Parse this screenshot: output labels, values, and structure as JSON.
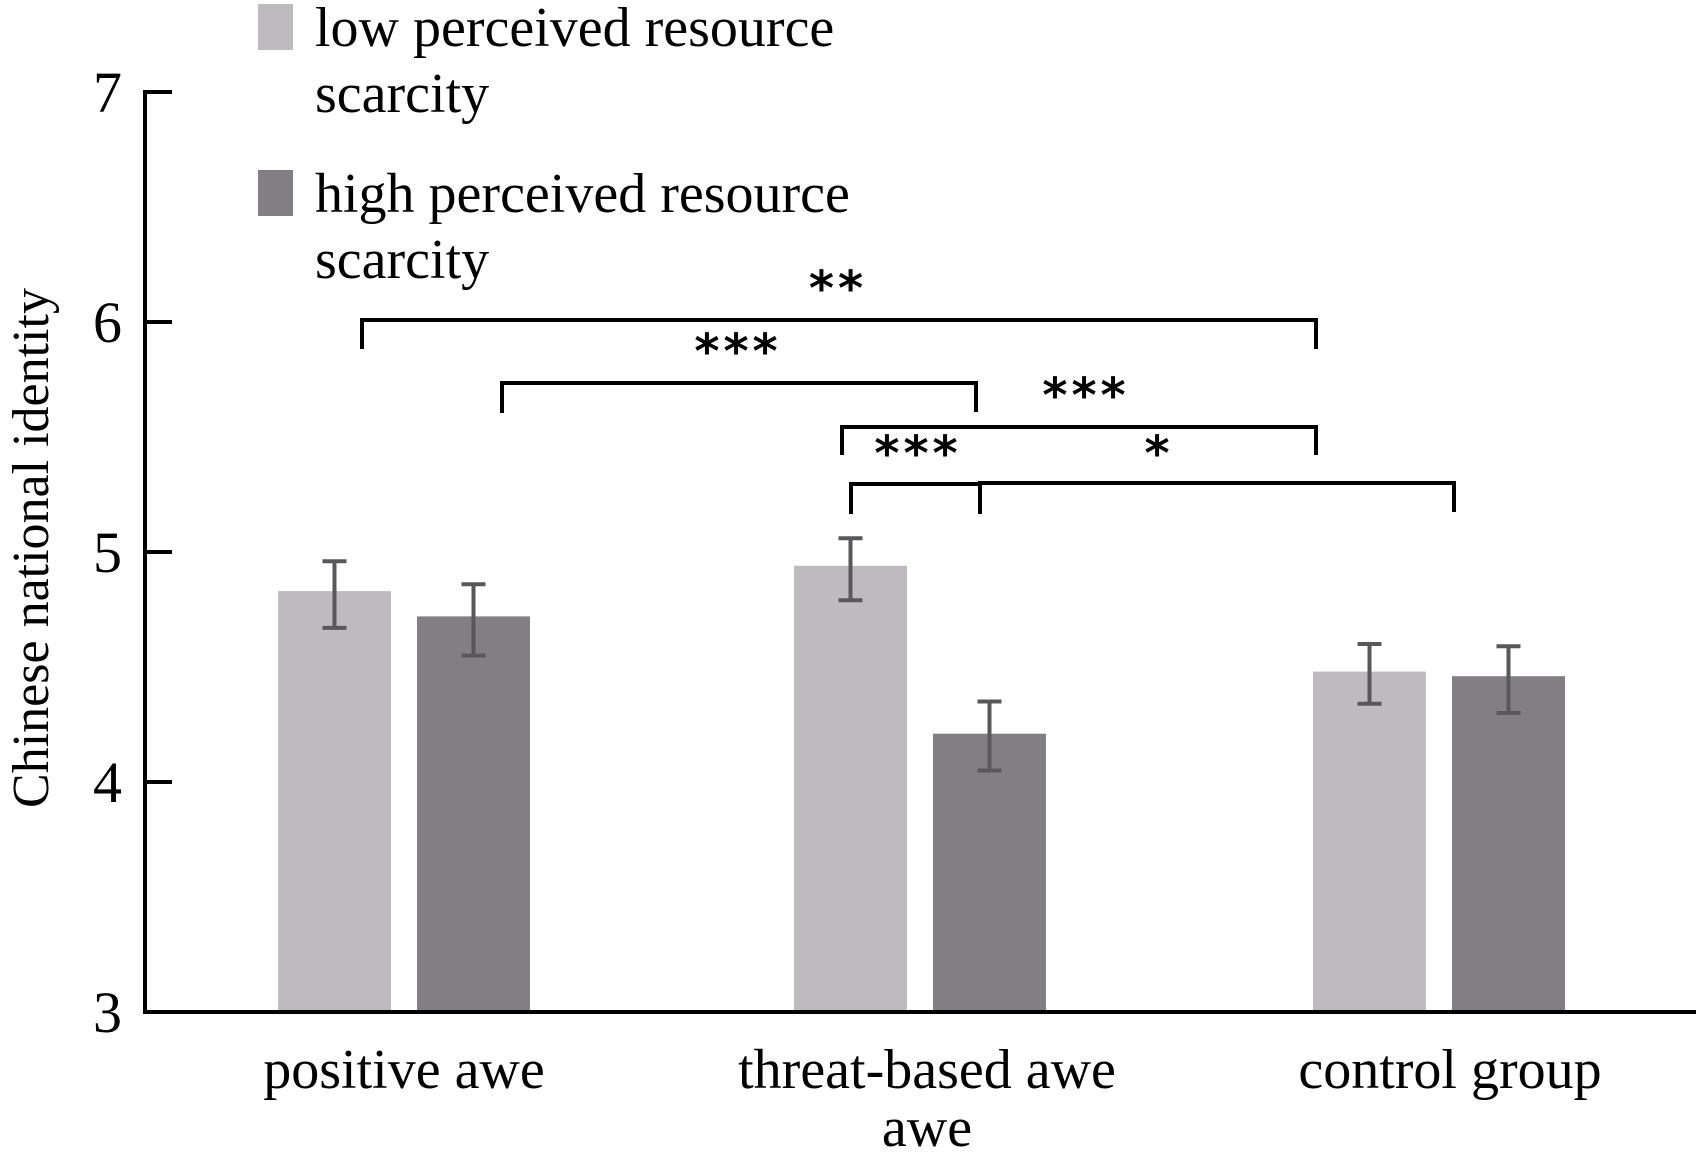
{
  "chart_data": {
    "type": "bar",
    "title": "",
    "xlabel": "",
    "ylabel": "Chinese national identity",
    "ylim": [
      3,
      7
    ],
    "yticks": [
      "3",
      "4",
      "5",
      "6",
      "7"
    ],
    "grid": false,
    "legend_position": "top-left",
    "categories": [
      "positive awe",
      "threat-based awe",
      "control group"
    ],
    "category_labels": [
      [
        "positive awe"
      ],
      [
        "threat-based awe",
        "awe"
      ],
      [
        "control group"
      ]
    ],
    "series": [
      {
        "name": "low perceived resource scarcity",
        "legend_lines": [
          "low perceived resource",
          "scarcity"
        ],
        "color": "#bdbbbe",
        "values": [
          4.83,
          4.94,
          4.48
        ],
        "error_low": [
          4.67,
          4.79,
          4.34
        ],
        "error_high": [
          4.96,
          5.06,
          4.6
        ]
      },
      {
        "name": "high perceived resource scarcity",
        "legend_lines": [
          "high perceived resource",
          "scarcity"
        ],
        "color": "#817f84",
        "values": [
          4.72,
          4.21,
          4.46
        ],
        "error_low": [
          4.55,
          4.05,
          4.3
        ],
        "error_high": [
          4.86,
          4.35,
          4.59
        ]
      }
    ],
    "error_bar_color": "#58575a",
    "significance": [
      {
        "from": {
          "category": 0,
          "series": 0
        },
        "to": {
          "category": 2,
          "series": 0
        },
        "label": "**"
      },
      {
        "from": {
          "category": 0,
          "series": 1
        },
        "to": {
          "category": 1,
          "series": 1
        },
        "label": "***"
      },
      {
        "from": {
          "category": 1,
          "series": 0
        },
        "to": {
          "category": 2,
          "series": 0
        },
        "label": "***"
      },
      {
        "from": {
          "category": 1,
          "series": 0
        },
        "to": {
          "category": 1,
          "series": 1
        },
        "label": "***"
      },
      {
        "from": {
          "category": 1,
          "series": 1
        },
        "to": {
          "category": 2,
          "series": 1
        },
        "label": "*"
      }
    ]
  }
}
